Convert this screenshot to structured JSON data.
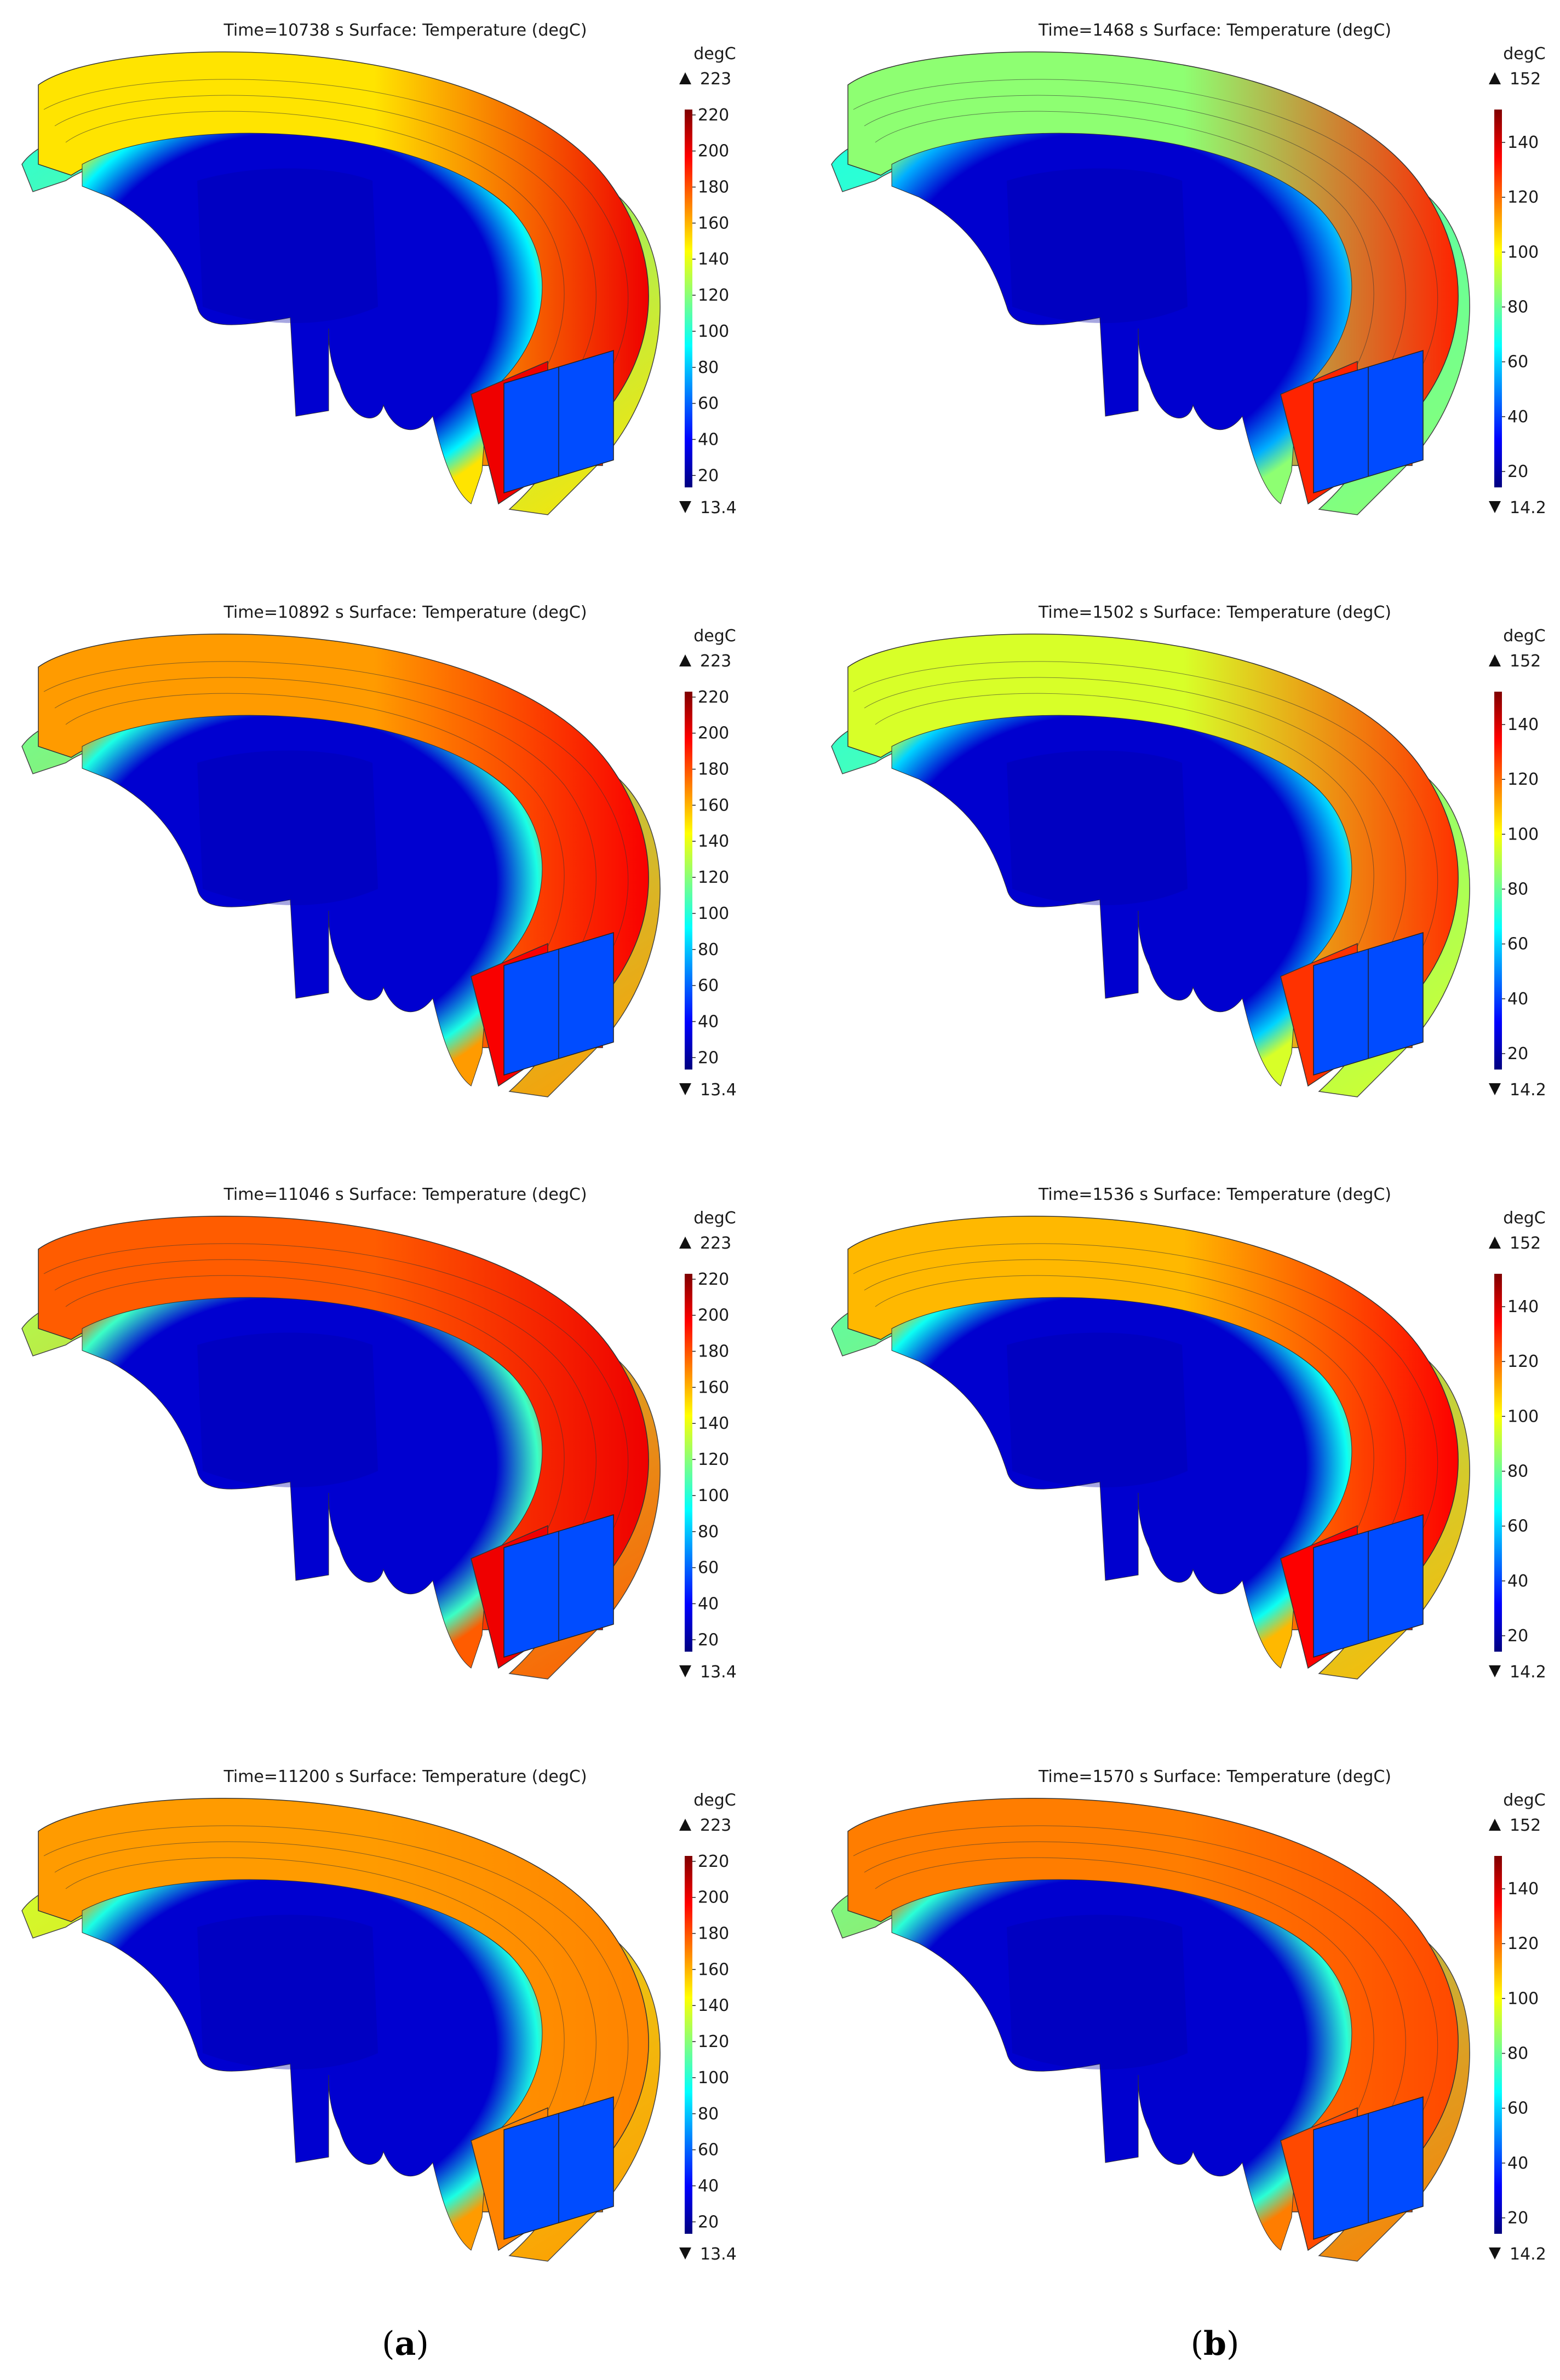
{
  "colormap": [
    "#00007f",
    "#0000ff",
    "#0080ff",
    "#00ffff",
    "#80ff80",
    "#ffff00",
    "#ff8000",
    "#ff0000",
    "#7f0000"
  ],
  "columns": [
    {
      "caption_letter": "a",
      "colorbar": {
        "unit": "degC",
        "max_label": "223",
        "min_label": "13.4",
        "min": 13.4,
        "max": 223,
        "ticks": [
          20,
          40,
          60,
          80,
          100,
          120,
          140,
          160,
          180,
          200,
          220
        ]
      },
      "plots": [
        {
          "title": "Time=10738 s   Surface: Temperature (degC)",
          "outer_temp": 200,
          "upper_temp": 150,
          "lower_temp": 100,
          "core_temp": 30
        },
        {
          "title": "Time=10892 s   Surface: Temperature (degC)",
          "outer_temp": 198,
          "upper_temp": 165,
          "lower_temp": 115,
          "core_temp": 30
        },
        {
          "title": "Time=11046 s   Surface: Temperature (degC)",
          "outer_temp": 200,
          "upper_temp": 178,
          "lower_temp": 128,
          "core_temp": 30
        },
        {
          "title": "Time=11200 s   Surface: Temperature (degC)",
          "outer_temp": 170,
          "upper_temp": 165,
          "lower_temp": 135,
          "core_temp": 30
        }
      ]
    },
    {
      "caption_letter": "b",
      "colorbar": {
        "unit": "degC",
        "max_label": "152",
        "min_label": "14.2",
        "min": 14.2,
        "max": 152,
        "ticks": [
          20,
          40,
          60,
          80,
          100,
          120,
          140
        ]
      },
      "plots": [
        {
          "title": "Time=1468 s   Surface: Temperature (degC)",
          "outer_temp": 130,
          "upper_temp": 85,
          "lower_temp": 70,
          "core_temp": 25
        },
        {
          "title": "Time=1502 s   Surface: Temperature (degC)",
          "outer_temp": 128,
          "upper_temp": 95,
          "lower_temp": 72,
          "core_temp": 25
        },
        {
          "title": "Time=1536 s   Surface: Temperature (degC)",
          "outer_temp": 135,
          "upper_temp": 110,
          "lower_temp": 78,
          "core_temp": 25
        },
        {
          "title": "Time=1570 s   Surface: Temperature (degC)",
          "outer_temp": 125,
          "upper_temp": 118,
          "lower_temp": 82,
          "core_temp": 25
        }
      ]
    }
  ]
}
